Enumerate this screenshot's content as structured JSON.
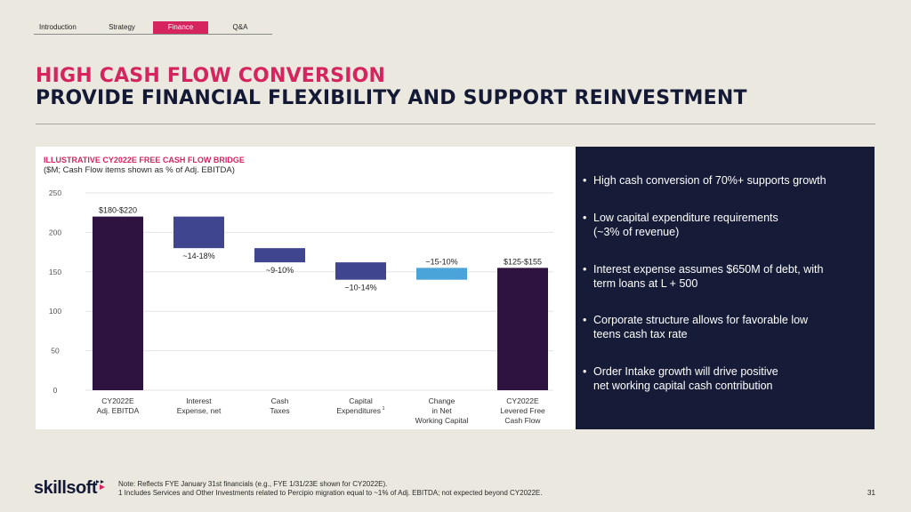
{
  "nav": {
    "tabs": [
      {
        "label": "Introduction",
        "active": false
      },
      {
        "label": "Strategy",
        "active": false
      },
      {
        "label": "Finance",
        "active": true
      },
      {
        "label": "Q&A",
        "active": false
      }
    ]
  },
  "header": {
    "title_line1": "HIGH CASH FLOW CONVERSION",
    "title_line2": "PROVIDE FINANCIAL FLEXIBILITY AND SUPPORT REINVESTMENT"
  },
  "colors": {
    "accent": "#d6245e",
    "navy": "#161c38",
    "total_bar": "#2e1240",
    "decrease_bar": "#3f458f",
    "increase_bar": "#4aa3d9"
  },
  "chart_data": {
    "type": "bar",
    "subtype": "waterfall",
    "title": "ILLUSTRATIVE CY2022E FREE CASH FLOW BRIDGE",
    "subtitle": "($M; Cash Flow items shown as % of Adj. EBITDA)",
    "xlabel": "",
    "ylabel": "",
    "ylim": [
      0,
      250
    ],
    "yticks": [
      0,
      50,
      100,
      150,
      200,
      250
    ],
    "grid": true,
    "legend": "none",
    "categories": [
      {
        "label_lines": [
          "CY2022E",
          "Adj. EBITDA"
        ],
        "superscript": ""
      },
      {
        "label_lines": [
          "Interest",
          "Expense, net"
        ],
        "superscript": ""
      },
      {
        "label_lines": [
          "Cash",
          "Taxes"
        ],
        "superscript": ""
      },
      {
        "label_lines": [
          "Capital",
          "Expenditures"
        ],
        "superscript": "1"
      },
      {
        "label_lines": [
          "Change",
          "in Net",
          "Working Capital"
        ],
        "superscript": ""
      },
      {
        "label_lines": [
          "CY2022E",
          "Levered Free",
          "Cash Flow"
        ],
        "superscript": ""
      }
    ],
    "bars": [
      {
        "kind": "total",
        "start": 0,
        "end": 220,
        "label": "$180-$220",
        "label_pos": "above"
      },
      {
        "kind": "decrease",
        "start": 220,
        "end": 180,
        "label": "~14-18%",
        "label_pos": "below"
      },
      {
        "kind": "decrease",
        "start": 180,
        "end": 162,
        "label": "~9-10%",
        "label_pos": "below"
      },
      {
        "kind": "decrease",
        "start": 162,
        "end": 140,
        "label": "~10-14%",
        "label_pos": "below"
      },
      {
        "kind": "increase",
        "start": 140,
        "end": 155,
        "label": "~15-10%",
        "label_pos": "above"
      },
      {
        "kind": "total",
        "start": 0,
        "end": 155,
        "label": "$125-$155",
        "label_pos": "above"
      }
    ]
  },
  "bullets": [
    "High cash conversion of 70%+ supports growth",
    "Low capital expenditure requirements\n(~3% of revenue)",
    "Interest expense assumes $650M of debt, with\nterm loans at L + 500",
    "Corporate structure allows for favorable low\nteens cash tax rate",
    "Order Intake growth will drive positive\nnet working capital cash contribution"
  ],
  "footer": {
    "logo_text": "skillsoft",
    "note_line1": "Note: Reflects FYE January 31st financials (e.g., FYE 1/31/23E shown for CY2022E).",
    "note_line2": "1 Includes Services and Other Investments related to Percipio migration equal to ~1% of Adj. EBITDA; not expected beyond CY2022E.",
    "page_number": "31"
  }
}
